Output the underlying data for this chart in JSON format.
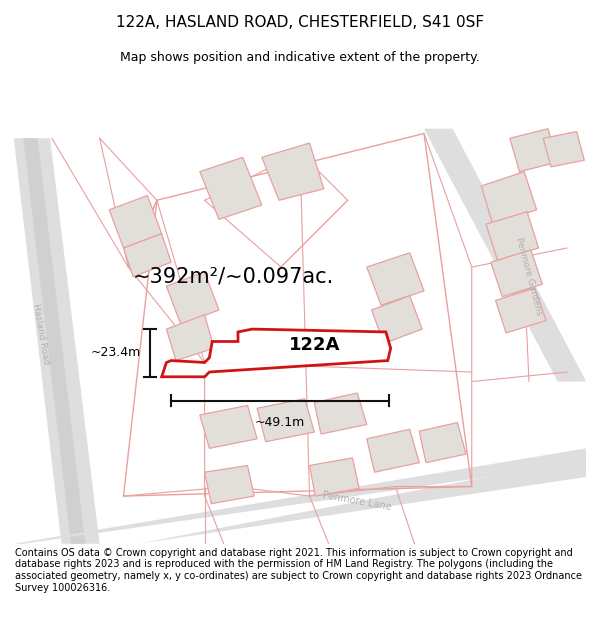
{
  "title_line1": "122A, HASLAND ROAD, CHESTERFIELD, S41 0SF",
  "title_line2": "Map shows position and indicative extent of the property.",
  "area_text": "~392m²/~0.097ac.",
  "label_122A": "122A",
  "dim_width": "~49.1m",
  "dim_height": "~23.4m",
  "road_hasland": "Hasland Road",
  "road_penmore_gardens": "Penmore Gardens",
  "road_penmore_lane": "Penmore Lane",
  "copyright_text": "Contains OS data © Crown copyright and database right 2021. This information is subject to Crown copyright and database rights 2023 and is reproduced with the permission of HM Land Registry. The polygons (including the associated geometry, namely x, y co-ordinates) are subject to Crown copyright and database rights 2023 Ordnance Survey 100026316.",
  "map_bg": "#f2f0ee",
  "building_fill": "#e2dfdb",
  "building_edge": "#e8a0a0",
  "road_fill": "#dedede",
  "pink_line": "#e8a0a0",
  "property_color": "#cc0000",
  "dim_color": "#111111",
  "road_label_color": "#b0b0b0",
  "title_fontsize": 11,
  "subtitle_fontsize": 9,
  "area_fontsize": 15,
  "label_fontsize": 13,
  "copyright_fontsize": 7.0
}
